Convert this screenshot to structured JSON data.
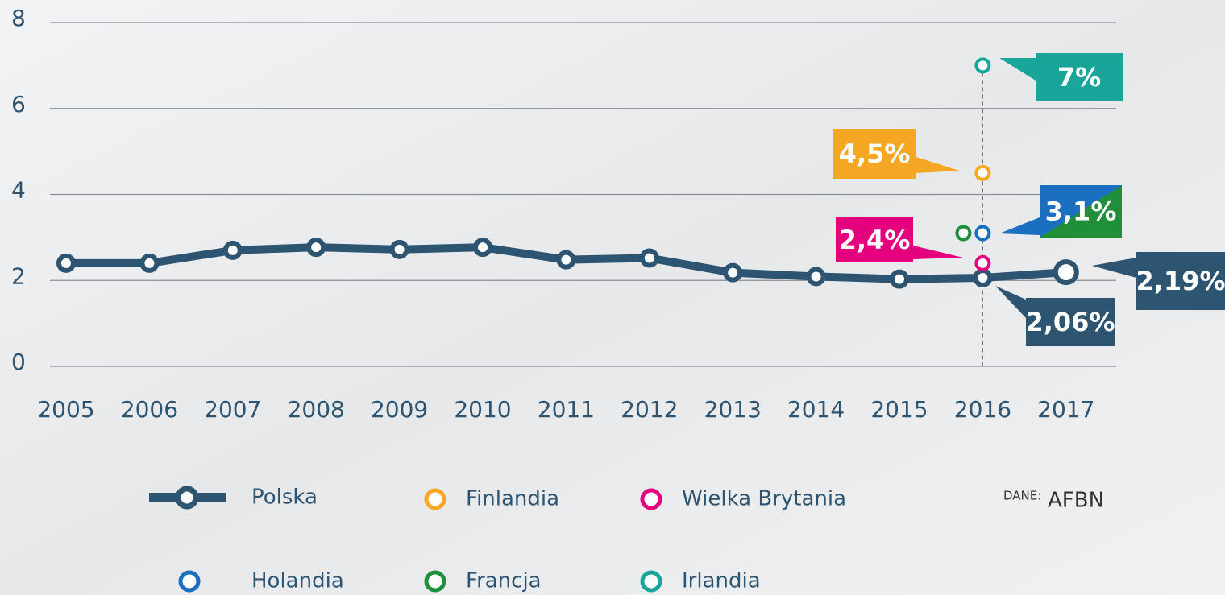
{
  "chart_data": {
    "type": "line",
    "categories": [
      "2005",
      "2006",
      "2007",
      "2008",
      "2009",
      "2010",
      "2011",
      "2012",
      "2013",
      "2014",
      "2015",
      "2016",
      "2017"
    ],
    "ylim": [
      0,
      8
    ],
    "yticks": [
      0,
      2,
      4,
      6,
      8
    ],
    "grid": true,
    "series": [
      {
        "name": "Polska",
        "color": "#2d5470",
        "values": [
          2.4,
          2.4,
          2.7,
          2.77,
          2.72,
          2.77,
          2.48,
          2.52,
          2.18,
          2.09,
          2.03,
          2.06,
          2.19
        ],
        "value_labels": [
          null,
          null,
          null,
          null,
          null,
          null,
          null,
          null,
          null,
          null,
          null,
          "2,06%",
          "2,19%"
        ]
      },
      {
        "name": "Finlandia",
        "color": "#f5a623",
        "values": [
          null,
          null,
          null,
          null,
          null,
          null,
          null,
          null,
          null,
          null,
          null,
          4.5,
          null
        ],
        "value_labels": [
          null,
          null,
          null,
          null,
          null,
          null,
          null,
          null,
          null,
          null,
          null,
          "4,5%",
          null
        ]
      },
      {
        "name": "Wielka Brytania",
        "color": "#e5007e",
        "values": [
          null,
          null,
          null,
          null,
          null,
          null,
          null,
          null,
          null,
          null,
          null,
          2.4,
          null
        ],
        "value_labels": [
          null,
          null,
          null,
          null,
          null,
          null,
          null,
          null,
          null,
          null,
          null,
          "2,4%",
          null
        ]
      },
      {
        "name": "Holandia",
        "color": "#1a6fc0",
        "values": [
          null,
          null,
          null,
          null,
          null,
          null,
          null,
          null,
          null,
          null,
          null,
          3.1,
          null
        ],
        "value_labels": [
          null,
          null,
          null,
          null,
          null,
          null,
          null,
          null,
          null,
          null,
          null,
          "3,1%",
          null
        ]
      },
      {
        "name": "Francja",
        "color": "#1f8f3a",
        "values": [
          null,
          null,
          null,
          null,
          null,
          null,
          null,
          null,
          null,
          null,
          null,
          3.1,
          null
        ]
      },
      {
        "name": "Irlandia",
        "color": "#1aa59a",
        "values": [
          null,
          null,
          null,
          null,
          null,
          null,
          null,
          null,
          null,
          null,
          null,
          7,
          null
        ],
        "value_labels": [
          null,
          null,
          null,
          null,
          null,
          null,
          null,
          null,
          null,
          null,
          null,
          "7%",
          null
        ]
      }
    ],
    "source_label": "DANE:",
    "source": "AFBN"
  }
}
